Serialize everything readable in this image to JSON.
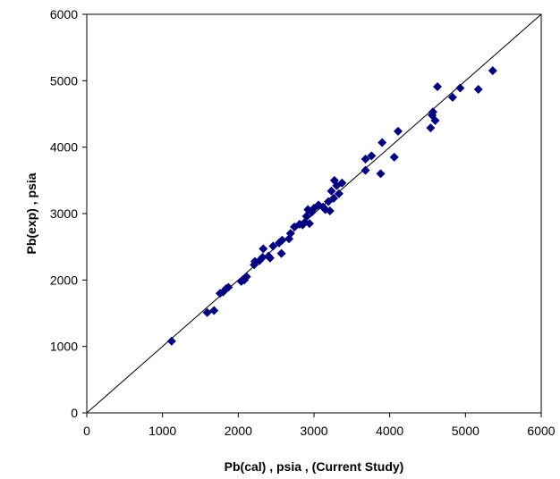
{
  "chart_data": {
    "type": "scatter",
    "title": "",
    "xlabel": "Pb(cal) , psia ,  (Current Study)",
    "ylabel": "Pb(exp) , psia",
    "xlim": [
      0,
      6000
    ],
    "ylim": [
      0,
      6000
    ],
    "x_ticks": [
      "0",
      "1000",
      "2000",
      "3000",
      "4000",
      "5000",
      "6000"
    ],
    "y_ticks": [
      "0",
      "1000",
      "2000",
      "3000",
      "4000",
      "5000",
      "6000"
    ],
    "grid": false,
    "legend": "none",
    "marker": "diamond",
    "marker_color": "#000080",
    "reference_line": {
      "type": "y=x",
      "color": "#000000"
    },
    "series": [
      {
        "points": [
          [
            1120,
            1080
          ],
          [
            1590,
            1510
          ],
          [
            1680,
            1540
          ],
          [
            1760,
            1800
          ],
          [
            1800,
            1820
          ],
          [
            1840,
            1870
          ],
          [
            1870,
            1890
          ],
          [
            2040,
            1980
          ],
          [
            2080,
            2000
          ],
          [
            2110,
            2050
          ],
          [
            2210,
            2230
          ],
          [
            2220,
            2280
          ],
          [
            2280,
            2290
          ],
          [
            2320,
            2340
          ],
          [
            2330,
            2470
          ],
          [
            2400,
            2360
          ],
          [
            2420,
            2330
          ],
          [
            2460,
            2510
          ],
          [
            2540,
            2560
          ],
          [
            2570,
            2400
          ],
          [
            2580,
            2600
          ],
          [
            2670,
            2620
          ],
          [
            2690,
            2700
          ],
          [
            2740,
            2800
          ],
          [
            2810,
            2840
          ],
          [
            2850,
            2830
          ],
          [
            2880,
            2870
          ],
          [
            2900,
            2960
          ],
          [
            2920,
            3060
          ],
          [
            2940,
            2850
          ],
          [
            2970,
            3020
          ],
          [
            3000,
            3080
          ],
          [
            3060,
            3130
          ],
          [
            3120,
            3100
          ],
          [
            3150,
            3060
          ],
          [
            3190,
            3180
          ],
          [
            3210,
            3040
          ],
          [
            3230,
            3340
          ],
          [
            3260,
            3230
          ],
          [
            3270,
            3500
          ],
          [
            3300,
            3420
          ],
          [
            3330,
            3300
          ],
          [
            3370,
            3460
          ],
          [
            3680,
            3650
          ],
          [
            3680,
            3820
          ],
          [
            3760,
            3870
          ],
          [
            3880,
            3600
          ],
          [
            3900,
            4070
          ],
          [
            4060,
            3850
          ],
          [
            4110,
            4240
          ],
          [
            4540,
            4290
          ],
          [
            4560,
            4480
          ],
          [
            4570,
            4530
          ],
          [
            4600,
            4400
          ],
          [
            4630,
            4910
          ],
          [
            4830,
            4750
          ],
          [
            4930,
            4890
          ],
          [
            5170,
            4870
          ],
          [
            5360,
            5150
          ]
        ]
      }
    ]
  }
}
